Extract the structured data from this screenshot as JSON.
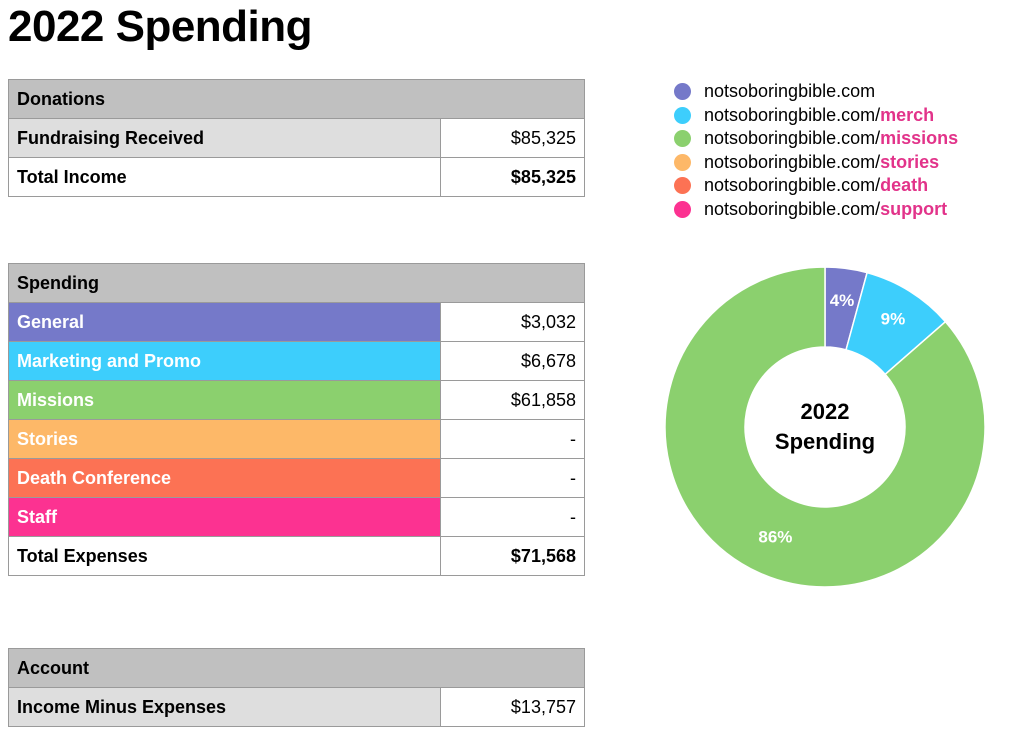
{
  "title": "2022 Spending",
  "donations": {
    "header": "Donations",
    "rows": [
      {
        "label": "Fundraising Received",
        "value": "$85,325"
      },
      {
        "label": "Total Income",
        "value": "$85,325"
      }
    ]
  },
  "spending": {
    "header": "Spending",
    "rows": [
      {
        "label": "General",
        "value": "$3,032",
        "color": "#7579c9"
      },
      {
        "label": "Marketing and Promo",
        "value": "$6,678",
        "color": "#3dcefc"
      },
      {
        "label": "Missions",
        "value": "$61,858",
        "color": "#8bd06e"
      },
      {
        "label": "Stories",
        "value": "-",
        "color": "#fdb868"
      },
      {
        "label": "Death Conference",
        "value": "-",
        "color": "#fc7254"
      },
      {
        "label": "Staff",
        "value": "-",
        "color": "#fc3291"
      }
    ],
    "total": {
      "label": "Total Expenses",
      "value": "$71,568"
    }
  },
  "account": {
    "header": "Account",
    "rows": [
      {
        "label": "Income Minus Expenses",
        "value": "$13,757"
      }
    ]
  },
  "legend": [
    {
      "base": "notsoboringbible.com",
      "path": "",
      "color": "#7579c9"
    },
    {
      "base": "notsoboringbible.com/",
      "path": "merch",
      "color": "#3dcefc"
    },
    {
      "base": "notsoboringbible.com/",
      "path": "missions",
      "color": "#8bd06e"
    },
    {
      "base": "notsoboringbible.com/",
      "path": "stories",
      "color": "#fdb868"
    },
    {
      "base": "notsoboringbible.com/",
      "path": "death",
      "color": "#fc7254"
    },
    {
      "base": "notsoboringbible.com/",
      "path": "support",
      "color": "#fc3291"
    }
  ],
  "chart_data": {
    "type": "pie",
    "title": "2022 Spending",
    "categories": [
      "General",
      "Marketing and Promo",
      "Missions",
      "Stories",
      "Death Conference",
      "Staff"
    ],
    "values": [
      3032,
      6678,
      61858,
      0,
      0,
      0
    ],
    "labels": [
      "4%",
      "9%",
      "86%",
      "",
      "",
      ""
    ],
    "colors": [
      "#7579c9",
      "#3dcefc",
      "#8bd06e",
      "#fdb868",
      "#fc7254",
      "#fc3291"
    ],
    "donut": true
  }
}
